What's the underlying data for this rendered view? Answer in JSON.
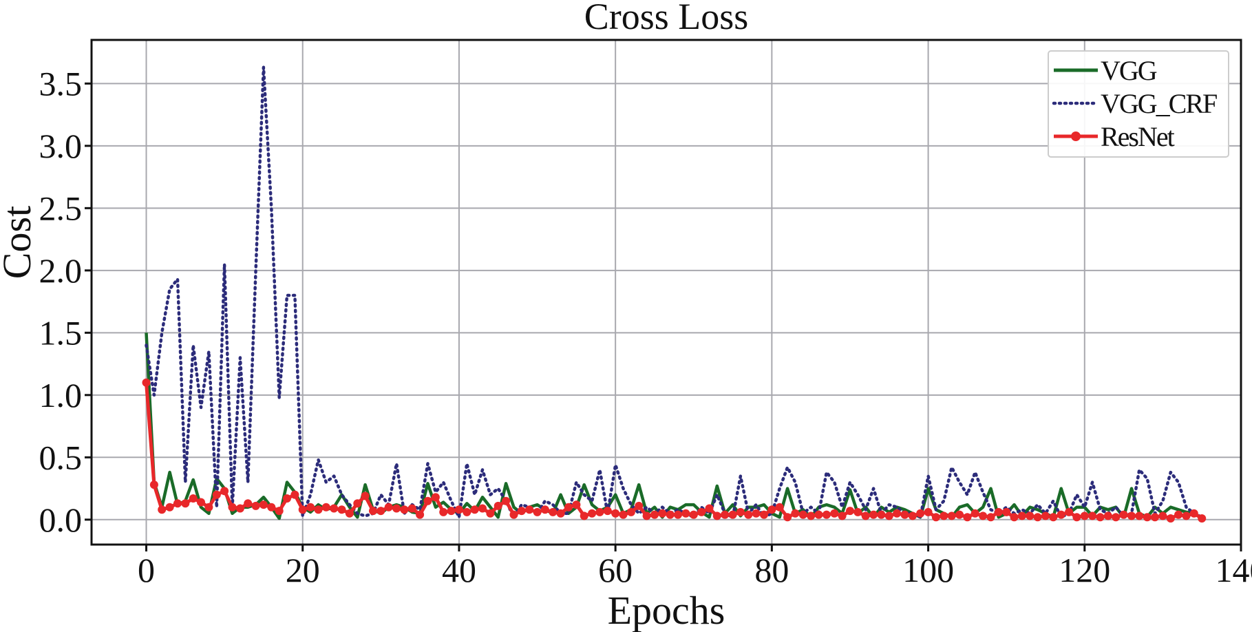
{
  "chart_data": {
    "type": "line",
    "title": "Cross Loss",
    "xlabel": "Epochs",
    "ylabel": "Cost",
    "xlim": [
      -7,
      140
    ],
    "ylim": [
      -0.2,
      3.85
    ],
    "xticks": [
      0,
      20,
      40,
      60,
      80,
      100,
      120,
      140
    ],
    "xtick_labels": [
      "0",
      "20",
      "40",
      "60",
      "80",
      "100",
      "120",
      "140"
    ],
    "yticks": [
      0.0,
      0.5,
      1.0,
      1.5,
      2.0,
      2.5,
      3.0,
      3.5
    ],
    "ytick_labels": [
      "0.0",
      "0.5",
      "1.0",
      "1.5",
      "2.0",
      "2.5",
      "3.0",
      "3.5"
    ],
    "grid": true,
    "legend_position": "top-right",
    "series": [
      {
        "name": "VGG",
        "color": "#1a6b28",
        "style": "solid",
        "values": [
          1.5,
          0.3,
          0.1,
          0.38,
          0.12,
          0.15,
          0.32,
          0.1,
          0.05,
          0.33,
          0.25,
          0.05,
          0.1,
          0.1,
          0.12,
          0.18,
          0.1,
          0.01,
          0.3,
          0.22,
          0.1,
          0.06,
          0.12,
          0.08,
          0.1,
          0.2,
          0.1,
          0.02,
          0.28,
          0.08,
          0.05,
          0.1,
          0.12,
          0.1,
          0.06,
          0.05,
          0.29,
          0.1,
          0.14,
          0.08,
          0.05,
          0.13,
          0.07,
          0.18,
          0.1,
          0.02,
          0.29,
          0.1,
          0.05,
          0.1,
          0.12,
          0.08,
          0.05,
          0.2,
          0.05,
          0.1,
          0.28,
          0.12,
          0.07,
          0.1,
          0.2,
          0.05,
          0.08,
          0.28,
          0.05,
          0.1,
          0.02,
          0.1,
          0.08,
          0.12,
          0.12,
          0.06,
          0.02,
          0.27,
          0.05,
          0.12,
          0.03,
          0.1,
          0.1,
          0.12,
          0.05,
          0.02,
          0.25,
          0.05,
          0.08,
          0.02,
          0.1,
          0.12,
          0.1,
          0.05,
          0.24,
          0.05,
          0.1,
          0.02,
          0.1,
          0.06,
          0.1,
          0.08,
          0.05,
          0.02,
          0.25,
          0.08,
          0.05,
          0.02,
          0.1,
          0.12,
          0.05,
          0.1,
          0.25,
          0.02,
          0.05,
          0.12,
          0.03,
          0.1,
          0.08,
          0.05,
          0.02,
          0.25,
          0.05,
          0.1,
          0.1,
          0.03,
          0.1,
          0.08,
          0.1,
          0.02,
          0.25,
          0.05,
          0.02,
          0.1,
          0.05,
          0.1,
          0.08,
          0.06,
          0.05,
          0.01
        ]
      },
      {
        "name": "VGG_CRF",
        "color": "#2c2c7a",
        "style": "dotted",
        "values": [
          1.4,
          1.0,
          1.5,
          1.85,
          1.93,
          0.3,
          1.4,
          0.9,
          1.35,
          0.1,
          2.05,
          0.1,
          1.3,
          0.3,
          2.0,
          3.63,
          2.5,
          0.98,
          1.8,
          1.8,
          0.03,
          0.2,
          0.48,
          0.3,
          0.35,
          0.2,
          0.12,
          0.05,
          0.03,
          0.05,
          0.2,
          0.12,
          0.45,
          0.05,
          0.12,
          0.08,
          0.45,
          0.22,
          0.3,
          0.15,
          0.02,
          0.45,
          0.2,
          0.4,
          0.2,
          0.25,
          0.15,
          0.02,
          0.12,
          0.1,
          0.05,
          0.15,
          0.12,
          0.05,
          0.05,
          0.3,
          0.2,
          0.15,
          0.4,
          0.05,
          0.44,
          0.25,
          0.12,
          0.05,
          0.1,
          0.05,
          0.1,
          0.05,
          0.08,
          0.05,
          0.02,
          0.1,
          0.05,
          0.2,
          0.05,
          0.02,
          0.35,
          0.05,
          0.12,
          0.02,
          0.05,
          0.25,
          0.42,
          0.3,
          0.05,
          0.1,
          0.05,
          0.38,
          0.3,
          0.1,
          0.3,
          0.2,
          0.08,
          0.25,
          0.05,
          0.12,
          0.1,
          0.05,
          0.05,
          0.02,
          0.35,
          0.08,
          0.15,
          0.42,
          0.3,
          0.2,
          0.38,
          0.22,
          0.08,
          0.05,
          0.1,
          0.05,
          0.08,
          0.05,
          0.12,
          0.05,
          0.15,
          0.02,
          0.05,
          0.2,
          0.1,
          0.3,
          0.08,
          0.05,
          0.1,
          0.03,
          0.05,
          0.4,
          0.33,
          0.05,
          0.15,
          0.38,
          0.3,
          0.1,
          0.05,
          0.02
        ]
      },
      {
        "name": "ResNet",
        "color": "#e8282a",
        "style": "solid-marker",
        "values": [
          1.1,
          0.28,
          0.08,
          0.1,
          0.13,
          0.13,
          0.17,
          0.14,
          0.1,
          0.2,
          0.23,
          0.1,
          0.09,
          0.13,
          0.11,
          0.12,
          0.1,
          0.07,
          0.17,
          0.2,
          0.08,
          0.1,
          0.08,
          0.1,
          0.09,
          0.08,
          0.05,
          0.13,
          0.19,
          0.07,
          0.07,
          0.1,
          0.09,
          0.08,
          0.09,
          0.04,
          0.15,
          0.18,
          0.06,
          0.07,
          0.08,
          0.06,
          0.08,
          0.09,
          0.05,
          0.11,
          0.15,
          0.04,
          0.07,
          0.08,
          0.06,
          0.08,
          0.06,
          0.05,
          0.1,
          0.12,
          0.03,
          0.05,
          0.06,
          0.07,
          0.05,
          0.04,
          0.06,
          0.11,
          0.03,
          0.04,
          0.05,
          0.04,
          0.04,
          0.05,
          0.04,
          0.06,
          0.09,
          0.03,
          0.04,
          0.04,
          0.06,
          0.04,
          0.05,
          0.04,
          0.08,
          0.1,
          0.02,
          0.05,
          0.04,
          0.03,
          0.04,
          0.04,
          0.05,
          0.03,
          0.07,
          0.06,
          0.03,
          0.04,
          0.04,
          0.03,
          0.05,
          0.04,
          0.03,
          0.05,
          0.06,
          0.02,
          0.03,
          0.03,
          0.04,
          0.02,
          0.05,
          0.03,
          0.02,
          0.06,
          0.06,
          0.02,
          0.03,
          0.03,
          0.02,
          0.03,
          0.02,
          0.04,
          0.06,
          0.02,
          0.03,
          0.03,
          0.02,
          0.03,
          0.02,
          0.04,
          0.03,
          0.03,
          0.02,
          0.02,
          0.03,
          0.01,
          0.04,
          0.03,
          0.05,
          0.01
        ]
      }
    ]
  }
}
